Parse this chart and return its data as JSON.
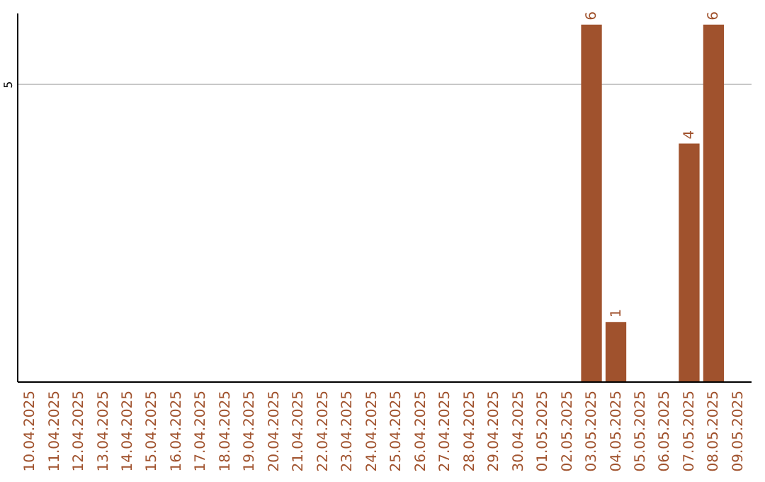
{
  "chart_data": {
    "type": "bar",
    "categories": [
      "10.04.2025",
      "11.04.2025",
      "12.04.2025",
      "13.04.2025",
      "14.04.2025",
      "15.04.2025",
      "16.04.2025",
      "17.04.2025",
      "18.04.2025",
      "19.04.2025",
      "20.04.2025",
      "21.04.2025",
      "22.04.2025",
      "23.04.2025",
      "24.04.2025",
      "25.04.2025",
      "26.04.2025",
      "27.04.2025",
      "28.04.2025",
      "29.04.2025",
      "30.04.2025",
      "01.05.2025",
      "02.05.2025",
      "03.05.2025",
      "04.05.2025",
      "05.05.2025",
      "06.05.2025",
      "07.05.2025",
      "08.05.2025",
      "09.05.2025"
    ],
    "values": [
      null,
      null,
      null,
      null,
      null,
      null,
      null,
      null,
      null,
      null,
      null,
      null,
      null,
      null,
      null,
      null,
      null,
      null,
      null,
      null,
      null,
      null,
      null,
      6,
      1,
      null,
      null,
      4,
      6,
      null
    ],
    "color": "#a0522d",
    "ylim": [
      0,
      6.2
    ],
    "yticks": [
      5
    ],
    "grid": "y",
    "data_labels": true
  }
}
